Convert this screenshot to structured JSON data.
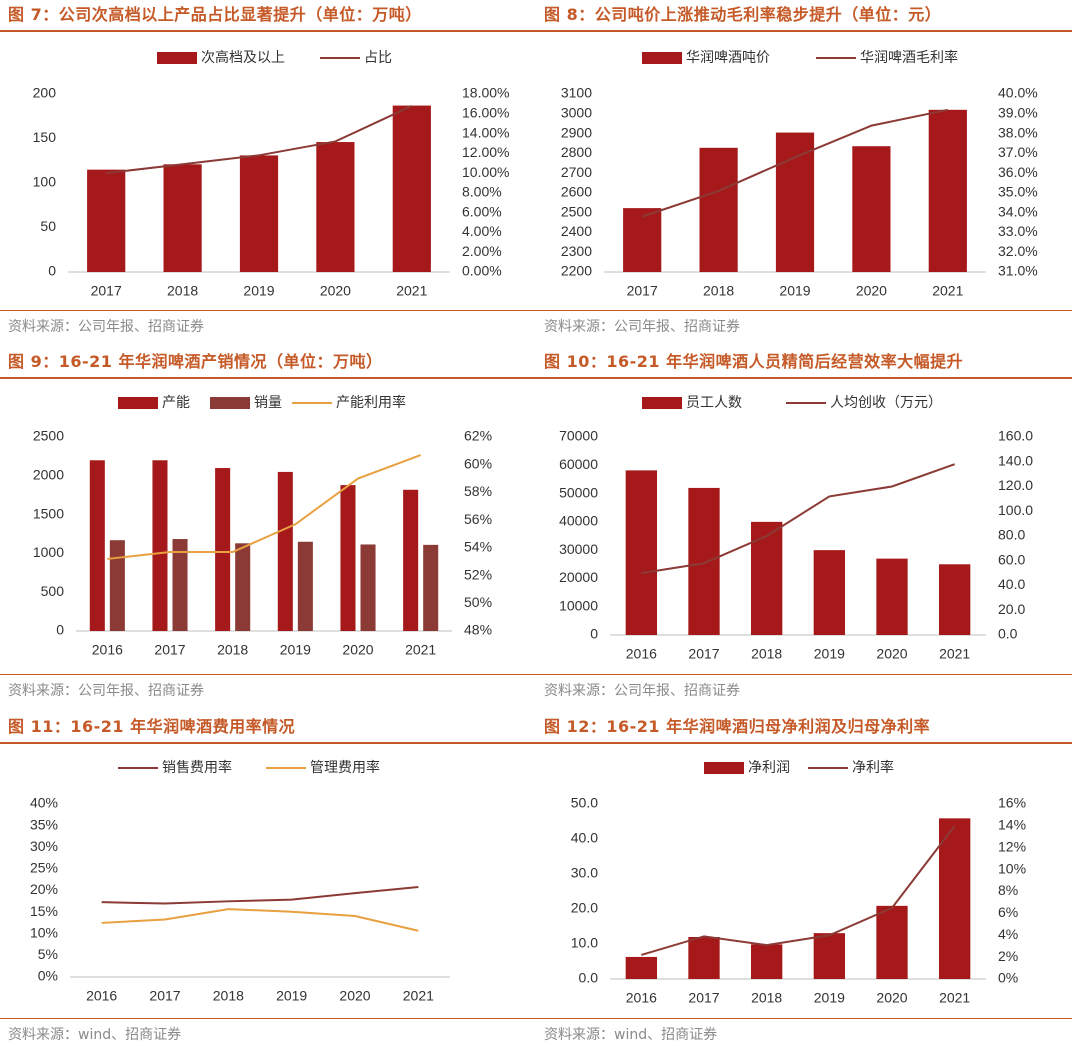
{
  "colors": {
    "title": "#c55a28",
    "bar": "#a5191b",
    "bar2": "#8b3a35",
    "line": "#8b3a35",
    "line_orange": "#e8a040",
    "source": "#8a8a8a"
  },
  "charts": [
    {
      "title": "图 7：公司次高档以上产品占比显著提升（单位：万吨）",
      "source": "资料来源：公司年报、招商证券",
      "chart_data": {
        "type": "bar",
        "categories": [
          "2017",
          "2018",
          "2019",
          "2020",
          "2021"
        ],
        "series": [
          {
            "name": "次高档及以上",
            "kind": "bar",
            "axis": "left",
            "values": [
              115,
              121,
              131,
              146,
              187
            ]
          },
          {
            "name": "占比",
            "kind": "line",
            "axis": "right",
            "values": [
              0.1,
              0.109,
              0.118,
              0.132,
              0.168
            ]
          }
        ],
        "ylim": [
          0,
          200
        ],
        "yticks": [
          "0",
          "50",
          "100",
          "150",
          "200"
        ],
        "y2lim": [
          0,
          0.18
        ],
        "y2ticks": [
          "0.00%",
          "2.00%",
          "4.00%",
          "6.00%",
          "8.00%",
          "10.00%",
          "12.00%",
          "14.00%",
          "16.00%",
          "18.00%"
        ]
      }
    },
    {
      "title": "图 8：公司吨价上涨推动毛利率稳步提升（单位：元）",
      "source": "资料来源：公司年报、招商证券",
      "chart_data": {
        "type": "bar",
        "categories": [
          "2017",
          "2018",
          "2019",
          "2020",
          "2021"
        ],
        "series": [
          {
            "name": "华润啤酒吨价",
            "kind": "bar",
            "axis": "left",
            "values": [
              2523,
              2828,
              2905,
              2836,
              3020
            ]
          },
          {
            "name": "华润啤酒毛利率",
            "kind": "line",
            "axis": "right",
            "values": [
              0.338,
              0.351,
              0.368,
              0.384,
              0.392
            ]
          }
        ],
        "ylim": [
          2200,
          3100
        ],
        "yticks": [
          "2200",
          "2300",
          "2400",
          "2500",
          "2600",
          "2700",
          "2800",
          "2900",
          "3000",
          "3100"
        ],
        "y2lim": [
          0.31,
          0.4
        ],
        "y2ticks": [
          "31.0%",
          "32.0%",
          "33.0%",
          "34.0%",
          "35.0%",
          "36.0%",
          "37.0%",
          "38.0%",
          "39.0%",
          "40.0%"
        ]
      }
    },
    {
      "title": "图 9：16-21 年华润啤酒产销情况（单位：万吨）",
      "source": "资料来源：公司年报、招商证券",
      "chart_data": {
        "type": "bar",
        "categories": [
          "2016",
          "2017",
          "2018",
          "2019",
          "2020",
          "2021"
        ],
        "series": [
          {
            "name": "产能",
            "kind": "bar",
            "axis": "left",
            "values": [
              2200,
              2200,
              2100,
              2050,
              1880,
              1820
            ]
          },
          {
            "name": "销量",
            "kind": "bar",
            "axis": "left",
            "values": [
              1170,
              1185,
              1130,
              1150,
              1115,
              1110
            ]
          },
          {
            "name": "产能利用率",
            "kind": "line",
            "axis": "right",
            "values": [
              0.532,
              0.537,
              0.537,
              0.557,
              0.59,
              0.607
            ]
          }
        ],
        "ylim": [
          0,
          2500
        ],
        "yticks": [
          "0",
          "500",
          "1000",
          "1500",
          "2000",
          "2500"
        ],
        "y2lim": [
          0.48,
          0.62
        ],
        "y2ticks": [
          "48%",
          "50%",
          "52%",
          "54%",
          "56%",
          "58%",
          "60%",
          "62%"
        ]
      }
    },
    {
      "title": "图 10：16-21 年华润啤酒人员精简后经营效率大幅提升",
      "source": "资料来源：公司年报、招商证券",
      "chart_data": {
        "type": "bar",
        "categories": [
          "2016",
          "2017",
          "2018",
          "2019",
          "2020",
          "2021"
        ],
        "series": [
          {
            "name": "员工人数",
            "kind": "bar",
            "axis": "left",
            "values": [
              58200,
              52000,
              40000,
              30000,
              27000,
              25000
            ]
          },
          {
            "name": "人均创收（万元）",
            "kind": "line",
            "axis": "right",
            "values": [
              50,
              58,
              80,
              112,
              120,
              138
            ]
          }
        ],
        "ylim": [
          0,
          70000
        ],
        "yticks": [
          "0",
          "10000",
          "20000",
          "30000",
          "40000",
          "50000",
          "60000",
          "70000"
        ],
        "y2lim": [
          0,
          160
        ],
        "y2ticks": [
          "0.0",
          "20.0",
          "40.0",
          "60.0",
          "80.0",
          "100.0",
          "120.0",
          "140.0",
          "160.0"
        ]
      }
    },
    {
      "title": "图 11：16-21 年华润啤酒费用率情况",
      "source": "资料来源：wind、招商证券",
      "chart_data": {
        "type": "line",
        "categories": [
          "2016",
          "2017",
          "2018",
          "2019",
          "2020",
          "2021"
        ],
        "series": [
          {
            "name": "销售费用率",
            "kind": "line",
            "axis": "left",
            "values": [
              0.173,
              0.17,
              0.175,
              0.179,
              0.194,
              0.208
            ]
          },
          {
            "name": "管理费用率",
            "kind": "line",
            "axis": "left",
            "values": [
              0.125,
              0.133,
              0.157,
              0.151,
              0.141,
              0.107
            ]
          }
        ],
        "ylim": [
          0,
          0.4
        ],
        "yticks": [
          "0%",
          "5%",
          "10%",
          "15%",
          "20%",
          "25%",
          "30%",
          "35%",
          "40%"
        ]
      }
    },
    {
      "title": "图 12：16-21 年华润啤酒归母净利润及归母净利率",
      "source": "资料来源：wind、招商证券",
      "chart_data": {
        "type": "bar",
        "categories": [
          "2016",
          "2017",
          "2018",
          "2019",
          "2020",
          "2021"
        ],
        "series": [
          {
            "name": "净利润",
            "kind": "bar",
            "axis": "left",
            "values": [
              6.3,
              12.0,
              9.9,
              13.1,
              20.9,
              45.9
            ]
          },
          {
            "name": "净利率",
            "kind": "line",
            "axis": "right",
            "values": [
              0.022,
              0.039,
              0.031,
              0.04,
              0.065,
              0.14
            ]
          }
        ],
        "ylim": [
          0,
          50
        ],
        "yticks": [
          "0.0",
          "10.0",
          "20.0",
          "30.0",
          "40.0",
          "50.0"
        ],
        "y2lim": [
          0,
          0.16
        ],
        "y2ticks": [
          "0%",
          "2%",
          "4%",
          "6%",
          "8%",
          "10%",
          "12%",
          "14%",
          "16%"
        ]
      }
    }
  ]
}
